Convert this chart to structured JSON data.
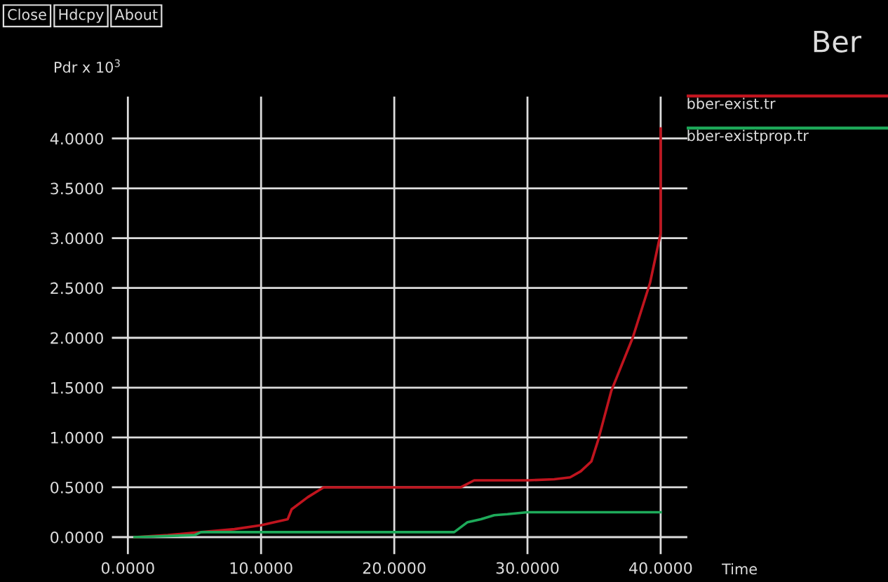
{
  "chart_data": {
    "type": "line",
    "title": "Ber",
    "ylabel": "Pdr x 10$^{3}$",
    "xlabel": "Time",
    "annotations": [
      "Close",
      "Hdcpy",
      "About"
    ],
    "series": [
      {
        "name": "bber-exist.tr",
        "color": "#c0141e",
        "x": [
          0.5,
          3,
          5.5,
          8,
          10,
          12,
          12.3,
          13.5,
          14.7,
          20,
          25,
          26,
          30,
          32,
          33.2,
          34,
          34.8,
          35.3,
          36.3,
          37.9,
          39.2,
          40,
          40
        ],
        "values": [
          0,
          0.02,
          0.05,
          0.08,
          0.12,
          0.18,
          0.28,
          0.4,
          0.5,
          0.5,
          0.5,
          0.57,
          0.57,
          0.58,
          0.6,
          0.66,
          0.76,
          0.97,
          1.47,
          2.0,
          2.55,
          3.05,
          4.1
        ]
      },
      {
        "name": "bber-existprop.tr",
        "color": "#1eaa5a",
        "x": [
          0.5,
          5,
          5.5,
          24.5,
          25.5,
          26.5,
          27.5,
          28.5,
          30,
          40
        ],
        "values": [
          0,
          0.02,
          0.05,
          0.05,
          0.15,
          0.18,
          0.22,
          0.23,
          0.25,
          0.25
        ]
      }
    ],
    "xlim": [
      -1.2,
      42
    ],
    "ylim": [
      -0.17,
      4.42
    ],
    "xticks": [
      {
        "value": 0,
        "label": "0.0000"
      },
      {
        "value": 10,
        "label": "10.0000"
      },
      {
        "value": 20,
        "label": "20.0000"
      },
      {
        "value": 30,
        "label": "30.0000"
      },
      {
        "value": 40,
        "label": "40.0000"
      }
    ],
    "yticks": [
      {
        "value": 0,
        "label": "0.0000"
      },
      {
        "value": 0.5,
        "label": "0.5000"
      },
      {
        "value": 1,
        "label": "1.0000"
      },
      {
        "value": 1.5,
        "label": "1.5000"
      },
      {
        "value": 2,
        "label": "2.0000"
      },
      {
        "value": 2.5,
        "label": "2.5000"
      },
      {
        "value": 3,
        "label": "3.0000"
      },
      {
        "value": 3.5,
        "label": "3.5000"
      },
      {
        "value": 4,
        "label": "4.0000"
      }
    ],
    "grid": true,
    "legend": "right"
  }
}
